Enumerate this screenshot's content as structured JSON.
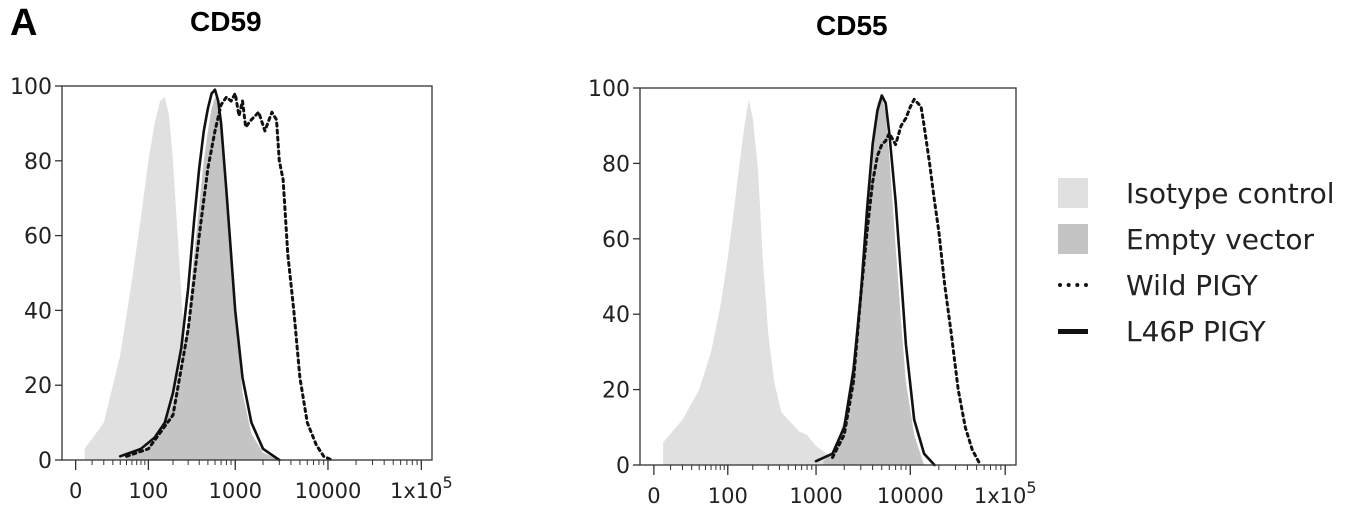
{
  "panel_label": "A",
  "colors": {
    "isotype": "#e0e0e0",
    "empty_vector": "#c4c4c4",
    "line": "#111111"
  },
  "legend": [
    {
      "label": "Isotype control",
      "style": "fill-light"
    },
    {
      "label": "Empty vector",
      "style": "fill-dark"
    },
    {
      "label": "Wild PIGY",
      "style": "dotted"
    },
    {
      "label": "L46P PIGY",
      "style": "solid"
    }
  ],
  "chart_data": [
    {
      "type": "area",
      "title": "CD59",
      "x_scale": "biexponential",
      "x_ticks": [
        {
          "value": 0,
          "label": "0"
        },
        {
          "value": 100,
          "label": "100"
        },
        {
          "value": 1000,
          "label": "1000"
        },
        {
          "value": 10000,
          "label": "10000"
        },
        {
          "value": 100000,
          "label": "1x10",
          "sup": "5"
        }
      ],
      "y_ticks": [
        0,
        20,
        40,
        60,
        80,
        100
      ],
      "ylim": [
        0,
        100
      ],
      "series": [
        {
          "name": "Isotype control",
          "style": "fill-light",
          "x": [
            5,
            20,
            40,
            60,
            80,
            100,
            120,
            140,
            160,
            180,
            200,
            230,
            260,
            300,
            350,
            420,
            500,
            650,
            800,
            1000,
            1300,
            2000
          ],
          "y": [
            3,
            10,
            28,
            48,
            65,
            80,
            90,
            96,
            97,
            92,
            80,
            58,
            38,
            22,
            12,
            6,
            3,
            2,
            2,
            3,
            2,
            0
          ]
        },
        {
          "name": "Empty vector",
          "style": "fill-dark",
          "x": [
            50,
            100,
            150,
            200,
            250,
            300,
            350,
            400,
            450,
            500,
            550,
            600,
            650,
            700,
            800,
            900,
            1000,
            1200,
            1500,
            2000,
            3000
          ],
          "y": [
            1,
            3,
            8,
            15,
            25,
            38,
            55,
            68,
            80,
            88,
            94,
            97,
            96,
            90,
            74,
            55,
            38,
            18,
            7,
            2,
            0
          ]
        },
        {
          "name": "Wild PIGY",
          "style": "dotted",
          "x": [
            50,
            100,
            200,
            300,
            400,
            500,
            600,
            700,
            800,
            900,
            1000,
            1100,
            1200,
            1300,
            1500,
            1800,
            2100,
            2500,
            2800,
            3000,
            3300,
            3700,
            4300,
            5000,
            6000,
            7500,
            9000,
            11000
          ],
          "y": [
            1,
            3,
            12,
            35,
            60,
            78,
            88,
            95,
            97,
            96,
            98,
            92,
            96,
            89,
            91,
            93,
            88,
            93,
            91,
            80,
            75,
            55,
            40,
            22,
            10,
            4,
            1,
            0
          ]
        },
        {
          "name": "L46P PIGY",
          "style": "solid",
          "x": [
            40,
            80,
            120,
            160,
            200,
            250,
            300,
            350,
            400,
            450,
            500,
            550,
            600,
            650,
            700,
            800,
            900,
            1000,
            1200,
            1500,
            2000,
            3000
          ],
          "y": [
            1,
            3,
            6,
            10,
            18,
            30,
            46,
            64,
            78,
            88,
            94,
            98,
            99,
            96,
            90,
            72,
            55,
            40,
            22,
            10,
            3,
            0
          ]
        }
      ]
    },
    {
      "type": "area",
      "title": "CD55",
      "x_scale": "biexponential",
      "x_ticks": [
        {
          "value": 0,
          "label": "0"
        },
        {
          "value": 100,
          "label": "100"
        },
        {
          "value": 1000,
          "label": "1000"
        },
        {
          "value": 10000,
          "label": "10000"
        },
        {
          "value": 100000,
          "label": "1x10",
          "sup": "5"
        }
      ],
      "y_ticks": [
        0,
        20,
        40,
        60,
        80,
        100
      ],
      "ylim": [
        0,
        100
      ],
      "series": [
        {
          "name": "Isotype control",
          "style": "fill-light",
          "x": [
            5,
            20,
            40,
            60,
            80,
            100,
            120,
            140,
            160,
            180,
            200,
            230,
            260,
            300,
            350,
            420,
            500,
            650,
            800,
            1000,
            1300,
            1600
          ],
          "y": [
            6,
            12,
            20,
            30,
            42,
            55,
            68,
            80,
            90,
            97,
            92,
            78,
            55,
            35,
            22,
            14,
            12,
            9,
            8,
            5,
            3,
            0
          ]
        },
        {
          "name": "Empty vector",
          "style": "fill-dark",
          "x": [
            1200,
            1600,
            2000,
            2500,
            3000,
            3500,
            4000,
            4500,
            5000,
            5500,
            6000,
            7000,
            8000,
            9000,
            11000,
            14000
          ],
          "y": [
            1,
            4,
            12,
            28,
            50,
            72,
            88,
            96,
            98,
            93,
            82,
            58,
            38,
            22,
            8,
            0
          ]
        },
        {
          "name": "Wild PIGY",
          "style": "dotted",
          "x": [
            1500,
            2000,
            2500,
            3000,
            3500,
            4000,
            4500,
            5000,
            5500,
            6000,
            7000,
            8000,
            9000,
            10000,
            11000,
            12000,
            13000,
            14000,
            16000,
            18000,
            20000,
            23000,
            27000,
            32000,
            38000,
            45000,
            55000
          ],
          "y": [
            2,
            8,
            22,
            45,
            62,
            75,
            82,
            85,
            86,
            88,
            85,
            90,
            92,
            95,
            97,
            96,
            95,
            90,
            80,
            70,
            62,
            48,
            35,
            20,
            10,
            4,
            0
          ]
        },
        {
          "name": "L46P PIGY",
          "style": "solid",
          "x": [
            1000,
            1500,
            2000,
            2500,
            3000,
            3500,
            4000,
            4500,
            5000,
            5500,
            6000,
            7000,
            8000,
            9000,
            11000,
            14000,
            18000
          ],
          "y": [
            1,
            3,
            10,
            25,
            45,
            68,
            85,
            94,
            98,
            96,
            88,
            70,
            50,
            32,
            12,
            3,
            0
          ]
        }
      ]
    }
  ]
}
